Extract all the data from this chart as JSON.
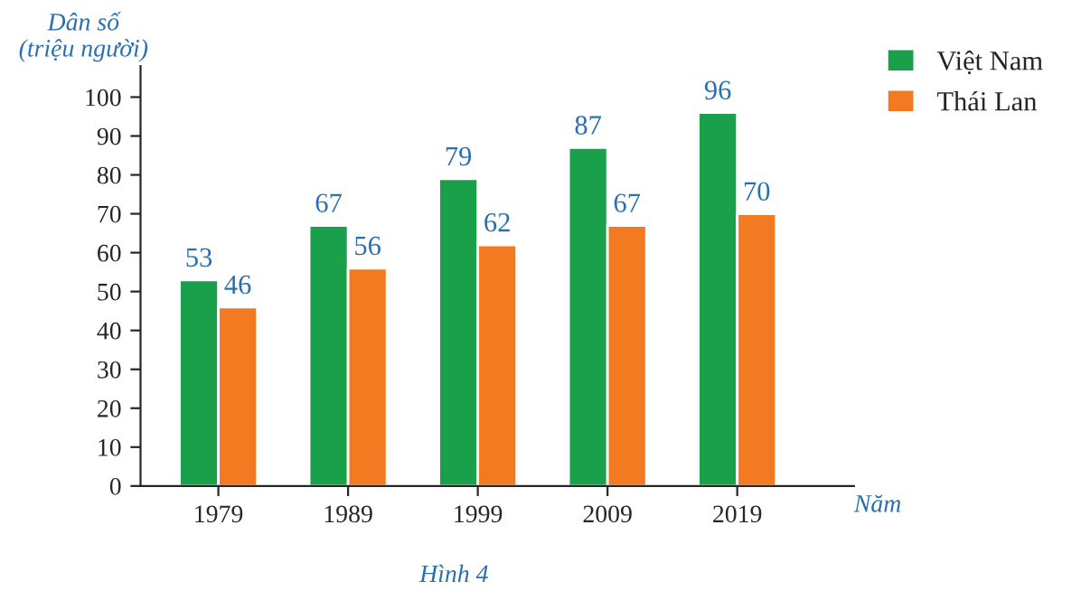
{
  "chart_data": {
    "type": "bar",
    "ylabel": "Dân số\n(triệu người)",
    "xlabel": "Năm",
    "categories": [
      "1979",
      "1989",
      "1999",
      "2009",
      "2019"
    ],
    "series": [
      {
        "name": "Việt Nam",
        "color": "#1aa04b",
        "values": [
          53,
          67,
          79,
          87,
          96
        ]
      },
      {
        "name": "Thái Lan",
        "color": "#f37a21",
        "values": [
          46,
          56,
          62,
          67,
          70
        ]
      }
    ],
    "ylim": [
      0,
      108
    ],
    "yticks": [
      0,
      10,
      20,
      30,
      40,
      50,
      60,
      70,
      80,
      90,
      100
    ],
    "data_labels": true,
    "grid": false,
    "legend": "top right",
    "annotations": [
      "Hình 4"
    ]
  }
}
